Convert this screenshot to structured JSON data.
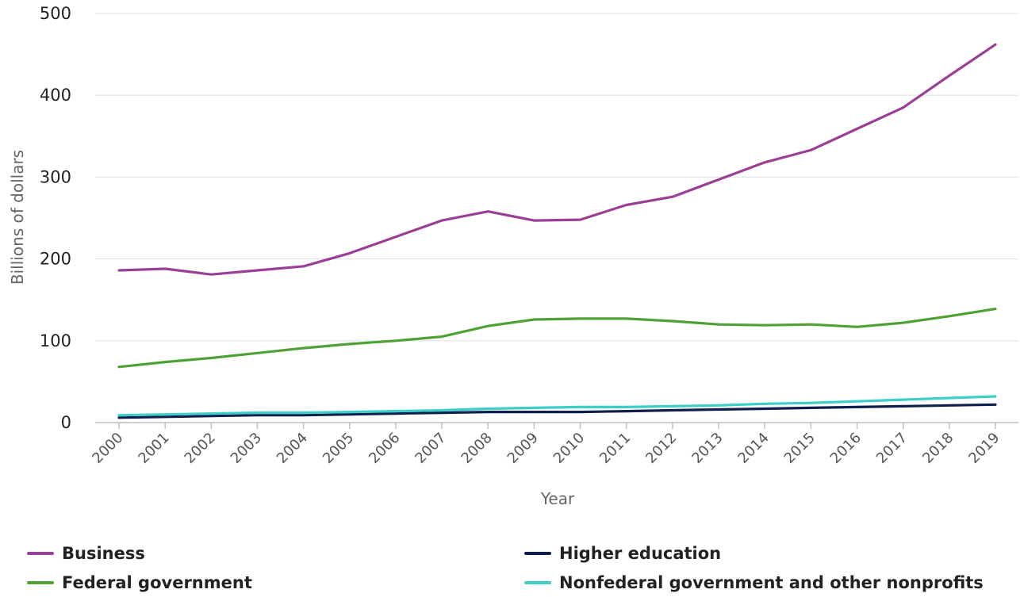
{
  "chart_data": {
    "type": "line",
    "xlabel": "Year",
    "ylabel": "Billions of dollars",
    "ylim": [
      0,
      500
    ],
    "yticks": [
      0,
      100,
      200,
      300,
      400,
      500
    ],
    "grid": true,
    "legend_position": "bottom",
    "x": [
      "2000",
      "2001",
      "2002",
      "2003",
      "2004",
      "2005",
      "2006",
      "2007",
      "2008",
      "2009",
      "2010",
      "2011",
      "2012",
      "2013",
      "2014",
      "2015",
      "2016",
      "2017",
      "2018",
      "2019"
    ],
    "series": [
      {
        "name": "Business",
        "color": "#9b3e96",
        "values": [
          186,
          188,
          181,
          186,
          191,
          207,
          227,
          247,
          258,
          247,
          248,
          266,
          276,
          297,
          318,
          333,
          359,
          385,
          424,
          462
        ]
      },
      {
        "name": "Higher education",
        "color": "#0f1e4a",
        "values": [
          6,
          7,
          8,
          9,
          9,
          10,
          11,
          12,
          13,
          13,
          13,
          14,
          15,
          16,
          17,
          18,
          19,
          20,
          21,
          22
        ]
      },
      {
        "name": "Federal government",
        "color": "#4fa136",
        "values": [
          68,
          74,
          79,
          85,
          91,
          96,
          100,
          105,
          118,
          126,
          127,
          127,
          124,
          120,
          119,
          120,
          117,
          122,
          130,
          139
        ]
      },
      {
        "name": "Nonfederal government and other nonprofits",
        "color": "#3ccfca",
        "values": [
          9,
          10,
          11,
          12,
          12,
          13,
          14,
          15,
          17,
          18,
          19,
          19,
          20,
          21,
          23,
          24,
          26,
          28,
          30,
          32
        ]
      }
    ]
  }
}
